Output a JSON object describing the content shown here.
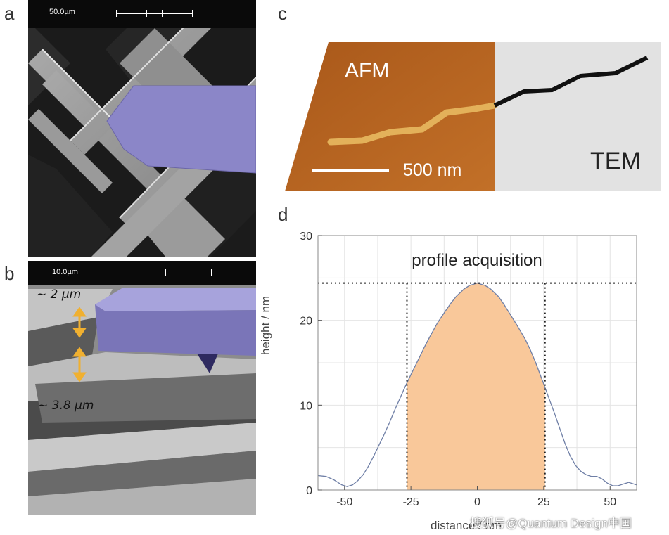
{
  "panels": {
    "a": {
      "letter": "a",
      "scale_label": "50.0µm"
    },
    "b": {
      "letter": "b",
      "scale_label": "10.0µm",
      "annotation_top": "~ 2 µm",
      "annotation_bottom": "~ 3.8 µm"
    },
    "c": {
      "letter": "c",
      "afm_label": "AFM",
      "tem_label": "TEM",
      "scalebar_label": "500 nm"
    },
    "d": {
      "letter": "d"
    }
  },
  "colors": {
    "cantilever": "#8b86c8",
    "arrow": "#f0b030",
    "afm_brown": "#b8651f",
    "fill_region": "#f9c89a",
    "curve": "#6f7fa6"
  },
  "chart_data": {
    "type": "area",
    "title": "profile acquisition",
    "xlabel": "distance / nm",
    "ylabel": "height / nm",
    "xlim": [
      -60,
      60
    ],
    "ylim": [
      0,
      30
    ],
    "xticks": [
      -50,
      -25,
      0,
      25,
      50
    ],
    "yticks": [
      0,
      10,
      20,
      30
    ],
    "grid": true,
    "series": [
      {
        "x": [
          -60,
          -57,
          -54,
          -51,
          -49,
          -47,
          -45,
          -43,
          -41,
          -39,
          -37,
          -35,
          -33,
          -31,
          -29,
          -27,
          -25,
          -22,
          -20,
          -18,
          -15,
          -12,
          -10,
          -8,
          -5,
          -3,
          0,
          3,
          5,
          8,
          10,
          12,
          15,
          18,
          20,
          22,
          25,
          27,
          29,
          31,
          33,
          35,
          37,
          39,
          41,
          43,
          45,
          47,
          49,
          51,
          53,
          55,
          57,
          60
        ],
        "values": [
          1.7,
          1.6,
          1.2,
          0.6,
          0.4,
          0.6,
          1.1,
          1.8,
          2.8,
          4.0,
          5.3,
          6.6,
          8.0,
          9.5,
          10.9,
          12.3,
          13.6,
          15.5,
          16.8,
          18.0,
          19.7,
          21.1,
          22.0,
          22.8,
          23.7,
          24.1,
          24.4,
          24.1,
          23.7,
          22.8,
          21.9,
          20.9,
          19.4,
          17.8,
          16.5,
          15.0,
          12.5,
          10.8,
          9.1,
          7.3,
          5.5,
          4.0,
          2.9,
          2.2,
          1.8,
          1.6,
          1.6,
          1.3,
          0.8,
          0.5,
          0.5,
          0.7,
          0.9,
          0.6
        ]
      }
    ],
    "annotations": {
      "max_height_line": 24.4,
      "shaded_range": [
        -26.5,
        25.5
      ]
    }
  },
  "watermark": "搜狐号@Quantum Design中国"
}
